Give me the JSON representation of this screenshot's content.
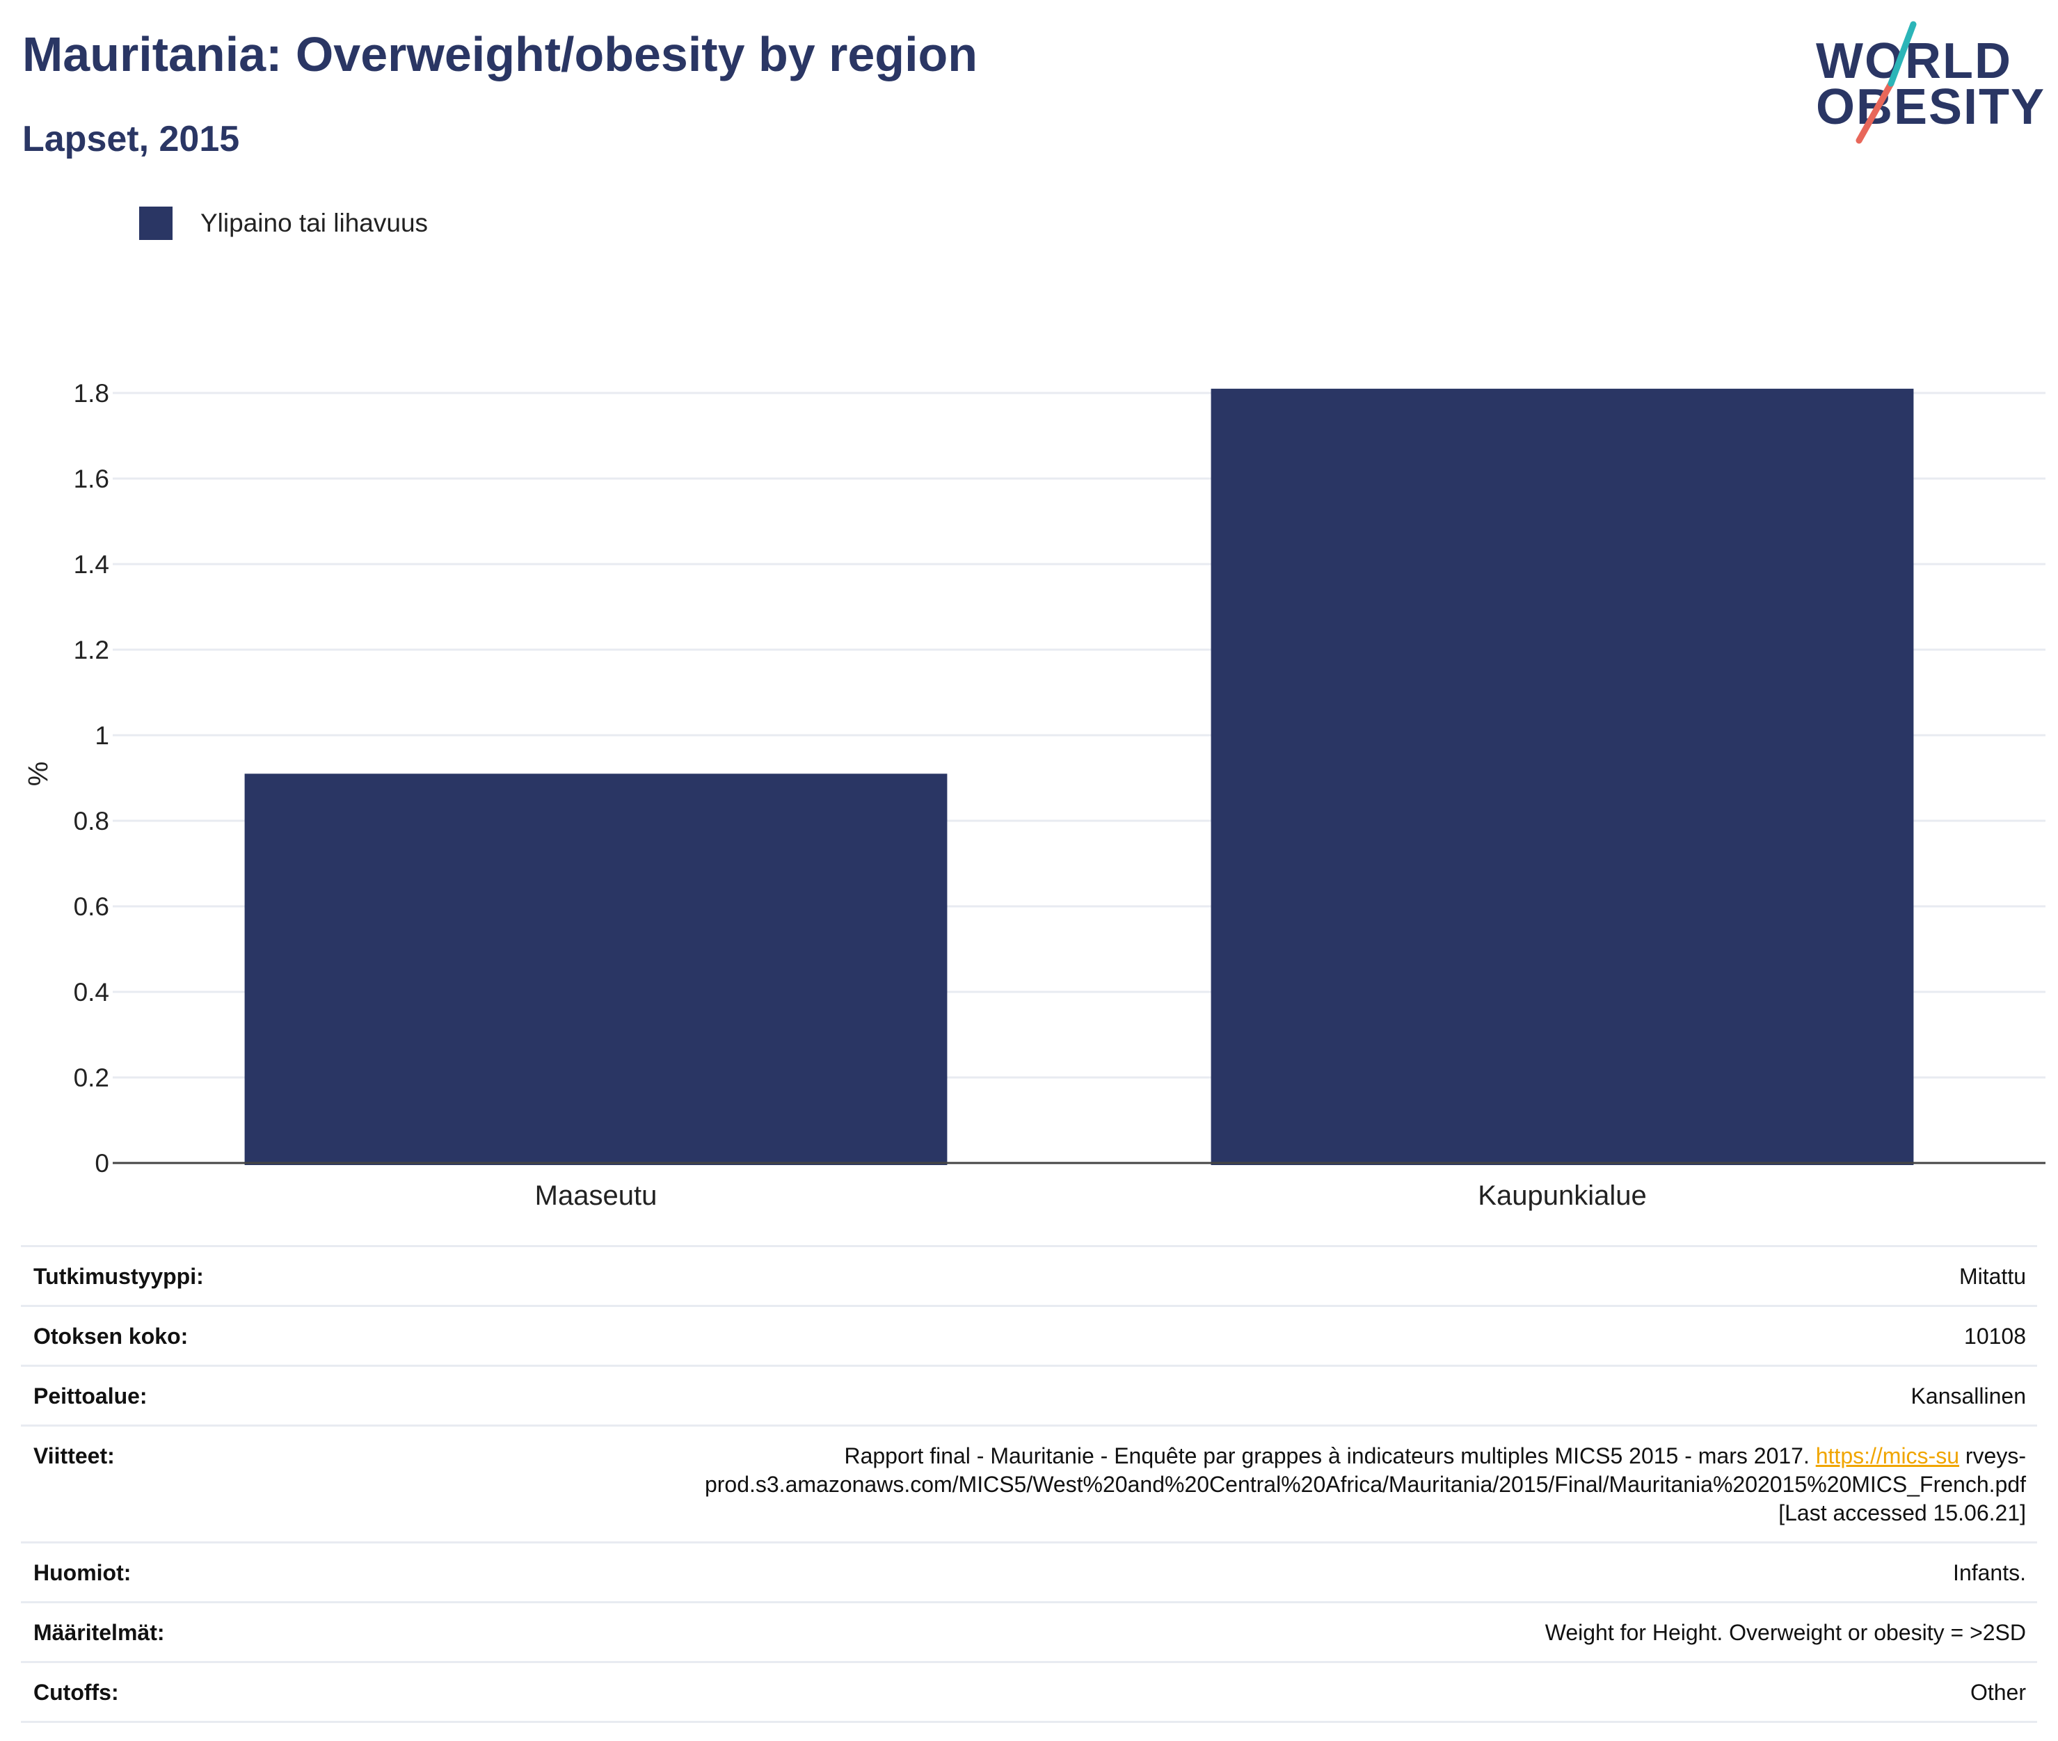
{
  "header": {
    "title": "Mauritania: Overweight/obesity by region",
    "subtitle": "Lapset, 2015"
  },
  "logo": {
    "line1": "WORLD",
    "line2": "OBESITY",
    "accent_colors": [
      "#2bb5b8",
      "#e8675a"
    ]
  },
  "colors": {
    "bar": "#2a3664",
    "title": "#2a3664",
    "grid": "#e8ebf1",
    "link": "#f0a500"
  },
  "chart_data": {
    "type": "bar",
    "categories": [
      "Maaseutu",
      "Kaupunkialue"
    ],
    "series": [
      {
        "name": "Ylipaino tai lihavuus",
        "values": [
          0.91,
          1.81
        ]
      }
    ],
    "ylabel": "%",
    "ylim": [
      0,
      1.8
    ],
    "yticks": [
      0,
      0.2,
      0.4,
      0.6,
      0.8,
      1,
      1.2,
      1.4,
      1.6,
      1.8
    ],
    "ytick_labels": [
      "0",
      "0.2",
      "0.4",
      "0.6",
      "0.8",
      "1",
      "1.2",
      "1.4",
      "1.6",
      "1.8"
    ],
    "legend": "top-left",
    "grid": true
  },
  "meta": [
    {
      "key": "Tutkimustyyppi:",
      "value": "Mitattu"
    },
    {
      "key": "Otoksen koko:",
      "value": "10108"
    },
    {
      "key": "Peittoalue:",
      "value": "Kansallinen"
    },
    {
      "key": "Viitteet:",
      "value_pre": "Rapport final - Mauritanie - Enquête par grappes à indicateurs multiples MICS5 2015 - mars 2017. ",
      "value_link": "https://mics-su",
      "value_post_1": " rveys-",
      "value_post_2": "prod.s3.amazonaws.com/MICS5/West%20and%20Central%20Africa/Mauritania/2015/Final/Mauritania%202015%20MICS_French.pdf",
      "value_post_3": "[Last accessed 15.06.21]"
    },
    {
      "key": "Huomiot:",
      "value": "Infants."
    },
    {
      "key": "Määritelmät:",
      "value": "Weight for Height. Overweight or obesity = >2SD"
    },
    {
      "key": "Cutoffs:",
      "value": "Other"
    }
  ]
}
